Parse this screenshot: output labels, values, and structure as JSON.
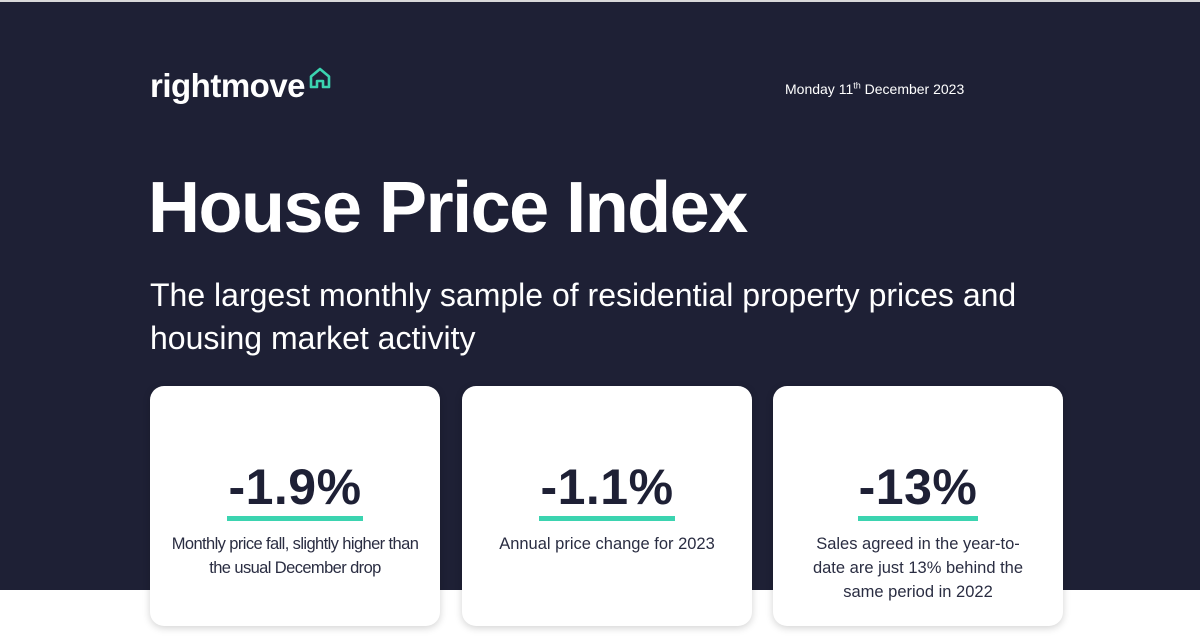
{
  "header": {
    "logo_text": "rightmove",
    "logo_icon": "house-icon",
    "date_prefix": "Monday 11",
    "date_suffix": "th",
    "date_rest": " December 2023"
  },
  "title": "House Price Index",
  "subtitle": "The largest monthly sample of residential property prices and housing market activity",
  "colors": {
    "background": "#1e2035",
    "accent": "#3bd4b0",
    "text_light": "#ffffff"
  },
  "stats": [
    {
      "value": "-1.9%",
      "description": "Monthly price fall, slightly higher than the usual December drop"
    },
    {
      "value": "-1.1%",
      "description": "Annual price change for 2023"
    },
    {
      "value": "-13%",
      "description": "Sales agreed in the year-to-date are just 13% behind the same period in 2022"
    }
  ]
}
